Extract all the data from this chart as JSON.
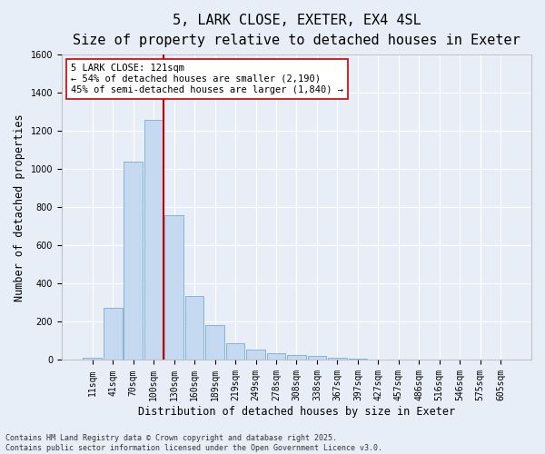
{
  "title_line1": "5, LARK CLOSE, EXETER, EX4 4SL",
  "title_line2": "Size of property relative to detached houses in Exeter",
  "xlabel": "Distribution of detached houses by size in Exeter",
  "ylabel": "Number of detached properties",
  "categories": [
    "11sqm",
    "41sqm",
    "70sqm",
    "100sqm",
    "130sqm",
    "160sqm",
    "189sqm",
    "219sqm",
    "249sqm",
    "278sqm",
    "308sqm",
    "338sqm",
    "367sqm",
    "397sqm",
    "427sqm",
    "457sqm",
    "486sqm",
    "516sqm",
    "546sqm",
    "575sqm",
    "605sqm"
  ],
  "values": [
    10,
    275,
    1040,
    1260,
    760,
    335,
    185,
    90,
    55,
    35,
    25,
    20,
    10,
    5,
    3,
    2,
    1,
    1,
    0,
    0,
    0
  ],
  "bar_color": "#c5d9f0",
  "bar_edge_color": "#7aabcf",
  "vline_color": "#cc0000",
  "annotation_text": "5 LARK CLOSE: 121sqm\n← 54% of detached houses are smaller (2,190)\n45% of semi-detached houses are larger (1,840) →",
  "annotation_box_color": "#ffffff",
  "annotation_box_edge": "#cc0000",
  "ylim": [
    0,
    1600
  ],
  "yticks": [
    0,
    200,
    400,
    600,
    800,
    1000,
    1200,
    1400,
    1600
  ],
  "bg_color": "#e8eef8",
  "plot_bg_color": "#e8eef8",
  "footer_text": "Contains HM Land Registry data © Crown copyright and database right 2025.\nContains public sector information licensed under the Open Government Licence v3.0.",
  "title_fontsize": 11,
  "subtitle_fontsize": 9.5,
  "axis_label_fontsize": 8.5,
  "tick_fontsize": 7,
  "annotation_fontsize": 7.5,
  "footer_fontsize": 6,
  "vline_index": 3.5
}
